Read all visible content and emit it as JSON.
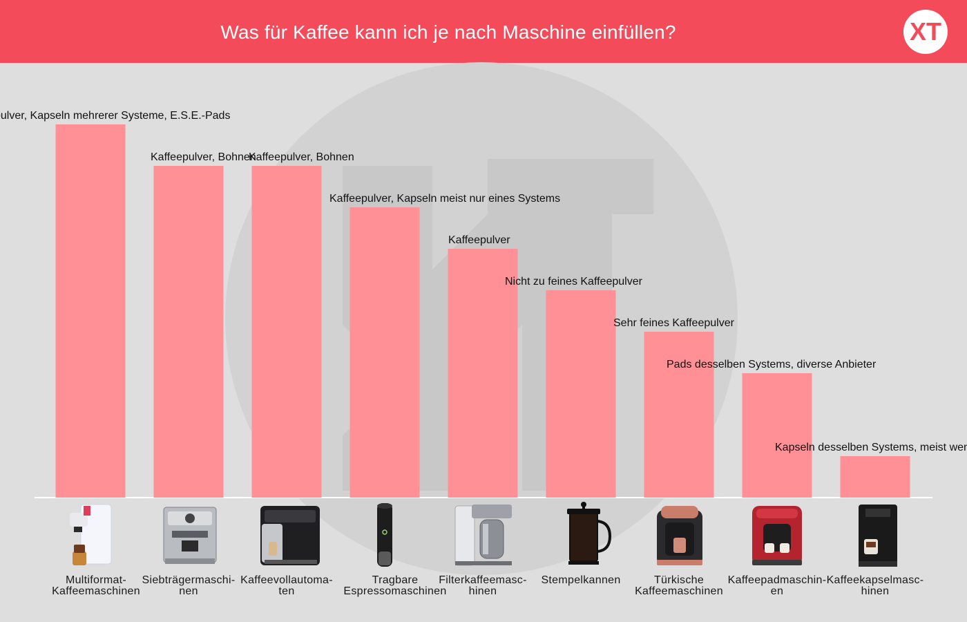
{
  "header": {
    "title": "Was für Kaffee kann ich je nach Maschine einfüllen?",
    "logo_text": "XT",
    "background": "#f44b5a"
  },
  "colors": {
    "bar": "#ff9096",
    "background": "#dedede",
    "baseline": "#ffffff",
    "watermark": "#cfcfcf"
  },
  "chart_data": {
    "type": "bar",
    "title": "Was für Kaffee kann ich je nach Maschine einfüllen?",
    "xlabel": "",
    "ylabel": "",
    "grid": false,
    "legend": "none",
    "ylim": [
      0,
      9
    ],
    "categories": [
      "Multiformat-Kaffeemaschinen",
      "Siebträgermaschinen",
      "Kaffeevollautomaten",
      "Tragbare Espressomaschinen",
      "Filterkaffeemaschinen",
      "Stempelkannen",
      "Türkische Kaffeemaschinen",
      "Kaffeepadmaschinen",
      "Kaffeekapselmaschinen"
    ],
    "category_label_lines": [
      [
        "Multiformat-",
        "Kaffeemaschinen"
      ],
      [
        "Siebträgermaschi-",
        "nen"
      ],
      [
        "Kaffeevollautoma-",
        "ten"
      ],
      [
        "Tragbare",
        "Espressomaschinen"
      ],
      [
        "Filterkaffeemasc-",
        "hinen"
      ],
      [
        "Stempelkannen"
      ],
      [
        "Türkische",
        "Kaffeemaschinen"
      ],
      [
        "Kaffeepadmaschin-",
        "en"
      ],
      [
        "Kaffeekapselmasc-",
        "hinen"
      ]
    ],
    "values": [
      9,
      8,
      8,
      7,
      6,
      5,
      4,
      3,
      1
    ],
    "data_labels": [
      "Kaffeepulver, Kapseln mehrerer Systeme, E.S.E.-Pads",
      "Kaffeepulver, Bohnen",
      "Kaffeepulver, Bohnen",
      "Kaffeepulver, Kapseln meist nur eines Systems",
      "Kaffeepulver",
      "Nicht zu feines Kaffeepulver",
      "Sehr feines Kaffeepulver",
      "Pads desselben Systems, diverse Anbieter",
      "Kapseln desselben Systems, meist wenige Anbieter"
    ],
    "icons": [
      "multiformat-machine-icon",
      "portafilter-machine-icon",
      "fully-automatic-machine-icon",
      "portable-espresso-icon",
      "filter-coffee-machine-icon",
      "french-press-icon",
      "turkish-coffee-machine-icon",
      "pad-machine-icon",
      "capsule-machine-icon"
    ]
  }
}
